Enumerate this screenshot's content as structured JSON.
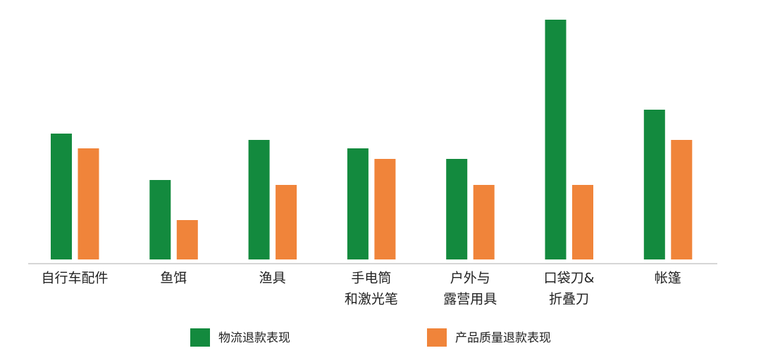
{
  "chart_data": {
    "type": "bar",
    "categories": [
      [
        "自行车配件"
      ],
      [
        "鱼饵"
      ],
      [
        "渔具"
      ],
      [
        "手电筒",
        "和激光笔"
      ],
      [
        "户外与",
        "露营用具"
      ],
      [
        "口袋刀&",
        "折叠刀"
      ],
      [
        "帐篷"
      ]
    ],
    "series": [
      {
        "name": "物流退款表现",
        "color": "#138a3e",
        "values": [
          179,
          113,
          170,
          158,
          143,
          341,
          213
        ]
      },
      {
        "name": "产品质量退款表现",
        "color": "#f0843a",
        "values": [
          158,
          56,
          106,
          143,
          106,
          106,
          170
        ]
      }
    ]
  }
}
